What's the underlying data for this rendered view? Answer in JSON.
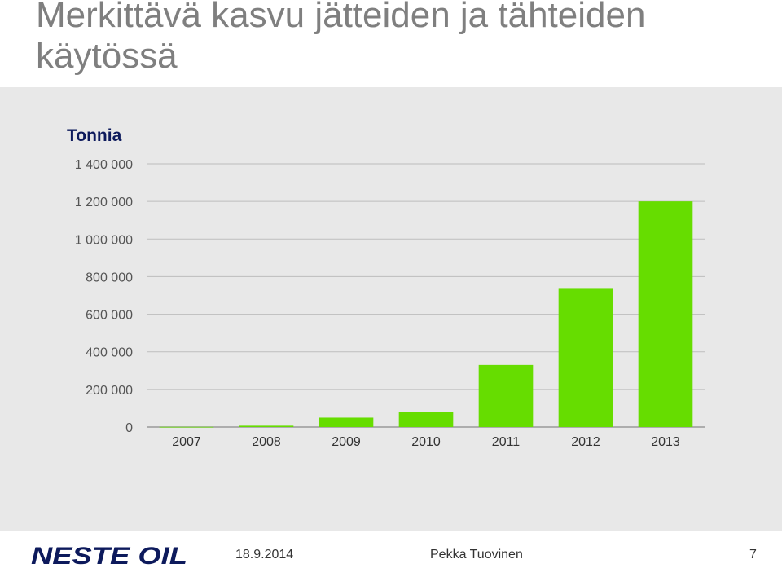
{
  "slide": {
    "title_line1": "Merkittävä kasvu jätteiden ja tähteiden",
    "title_line2": "käytössä"
  },
  "chart_data": {
    "type": "bar",
    "title": "",
    "ylabel": "Tonnia",
    "xlabel": "",
    "categories": [
      "2007",
      "2008",
      "2009",
      "2010",
      "2011",
      "2012",
      "2013"
    ],
    "values": [
      1000,
      7000,
      50000,
      82000,
      330000,
      735000,
      1200000
    ],
    "ylim": [
      0,
      1400000
    ],
    "yticks": [
      0,
      200000,
      400000,
      600000,
      800000,
      1000000,
      1200000,
      1400000
    ],
    "ytick_labels": [
      "0",
      "200 000",
      "400 000",
      "600 000",
      "800 000",
      "1 000 000",
      "1 200 000",
      "1 400 000"
    ],
    "grid": true,
    "bar_color": "#66dd00",
    "ylabel_color": "#0d1a5c"
  },
  "footer": {
    "date": "18.9.2014",
    "author": "Pekka Tuovinen",
    "page_number": "7",
    "logo_text": "NESTE OIL",
    "logo_color": "#0d1a5c"
  }
}
